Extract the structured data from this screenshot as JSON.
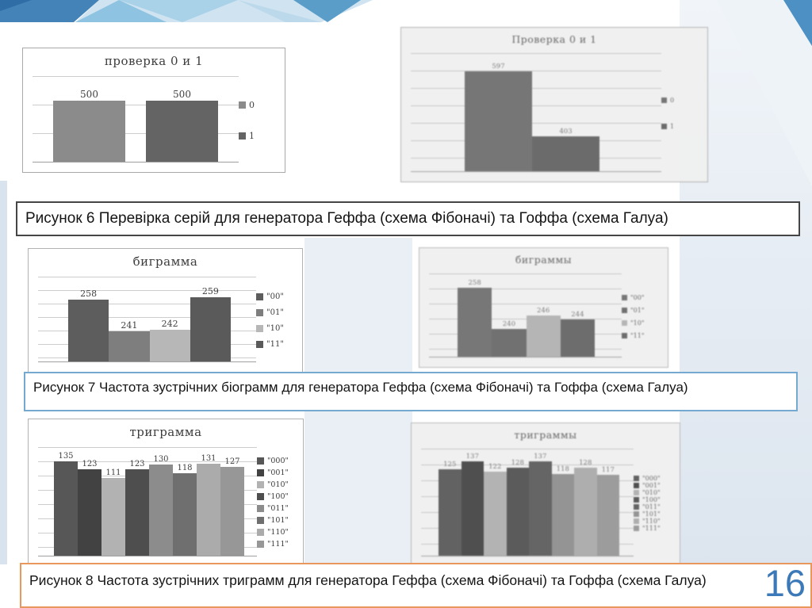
{
  "page": {
    "number": "16"
  },
  "theme": {
    "page_number_color": "#3c79b9",
    "caption6_border": "#454545",
    "caption7_border": "#76a9d0",
    "caption8_border": "#e9975c",
    "right_panel": "#dbe4ee",
    "left_strip": "#d9e3ed",
    "decor_blues": [
      "#4383b8",
      "#8ec3e2",
      "#cfe3f1",
      "#a9d2e8",
      "#bcd9ec",
      "#5a9dc8",
      "#4c90c4"
    ]
  },
  "captions": {
    "fig6": "Рисунок 6 Перевірка серій для генератора Геффа (схема Фібоначі) та Гоффа (схема Галуа)",
    "fig7": "Рисунок 7 Частота зустрічних біограмм для генератора Геффа (схема Фібоначі) та Гоффа (схема Галуа)",
    "fig8": "Рисунок 8 Частота зустрічних триграмм  для генератора Геффа (схема Фібоначі) та Гоффа (схема Галуа)"
  },
  "chart_data": [
    {
      "type": "bar",
      "title": "проверка 0 и 1",
      "categories": [
        "0",
        "1"
      ],
      "values": [
        500,
        500
      ],
      "labels": [
        "500",
        "500"
      ],
      "legend": [
        "0",
        "1"
      ],
      "legend_position": "right",
      "colors": [
        "#8b8b8b",
        "#646464"
      ],
      "ylim": [
        0,
        700
      ],
      "grid": true
    },
    {
      "type": "bar",
      "title": "Проверка 0 и 1",
      "categories": [
        "0",
        "1"
      ],
      "values": [
        597,
        403
      ],
      "labels": [
        "597",
        "403"
      ],
      "legend": [
        "0",
        "1"
      ],
      "legend_position": "right",
      "colors": [
        "#6d6d6d",
        "#5f5f5f"
      ],
      "ylim": [
        300,
        650
      ],
      "grid": true
    },
    {
      "type": "bar",
      "title": "биграмма",
      "categories": [
        "00",
        "01",
        "10",
        "11"
      ],
      "values": [
        258,
        241,
        242,
        259
      ],
      "labels": [
        "258",
        "241",
        "242",
        "259"
      ],
      "legend": [
        "\"00\"",
        "\"01\"",
        "\"10\"",
        "\"11\""
      ],
      "legend_position": "right",
      "colors": [
        "#5d5d5d",
        "#7e7e7e",
        "#b7b7b7",
        "#5a5a5a"
      ],
      "ylim": [
        225,
        270
      ],
      "grid": true
    },
    {
      "type": "bar",
      "title": "биграммы",
      "categories": [
        "00",
        "01",
        "10",
        "11"
      ],
      "values": [
        258,
        240,
        246,
        244
      ],
      "labels": [
        "258",
        "240",
        "246",
        "244"
      ],
      "legend": [
        "\"00\"",
        "\"01\"",
        "\"10\"",
        "\"11\""
      ],
      "legend_position": "right",
      "colors": [
        "#6e6e6e",
        "#666666",
        "#b8b8b8",
        "#626262"
      ],
      "ylim": [
        228,
        264
      ],
      "grid": true
    },
    {
      "type": "bar",
      "title": "триграмма",
      "categories": [
        "000",
        "001",
        "010",
        "100",
        "011",
        "101",
        "110",
        "111"
      ],
      "values": [
        135,
        123,
        111,
        123,
        130,
        118,
        131,
        127
      ],
      "labels": [
        "135",
        "123",
        "111",
        "123",
        "130",
        "118",
        "131",
        "127"
      ],
      "legend": [
        "\"000\"",
        "\"001\"",
        "\"010\"",
        "\"100\"",
        "\"011\"",
        "\"101\"",
        "\"110\"",
        "\"111\""
      ],
      "legend_position": "right",
      "colors": [
        "#575757",
        "#424242",
        "#b2b2b2",
        "#4e4e4e",
        "#8c8c8c",
        "#6f6f6f",
        "#ababab",
        "#979797"
      ],
      "ylim": [
        0,
        155
      ],
      "grid": true
    },
    {
      "type": "bar",
      "title": "триграммы",
      "categories": [
        "000",
        "001",
        "010",
        "100",
        "011",
        "101",
        "110",
        "111"
      ],
      "values": [
        125,
        137,
        122,
        128,
        137,
        118,
        128,
        117
      ],
      "labels": [
        "125",
        "137",
        "122",
        "128",
        "137",
        "118",
        "128",
        "117"
      ],
      "legend": [
        "\"000\"",
        "\"001\"",
        "\"010\"",
        "\"100\"",
        "\"011\"",
        "\"101\"",
        "\"110\"",
        "\"111\""
      ],
      "legend_position": "right",
      "colors": [
        "#555555",
        "#3e3e3e",
        "#b5b5b5",
        "#4c4c4c",
        "#585858",
        "#909090",
        "#b0b0b0",
        "#9a9a9a"
      ],
      "ylim": [
        0,
        155
      ],
      "grid": true
    }
  ]
}
